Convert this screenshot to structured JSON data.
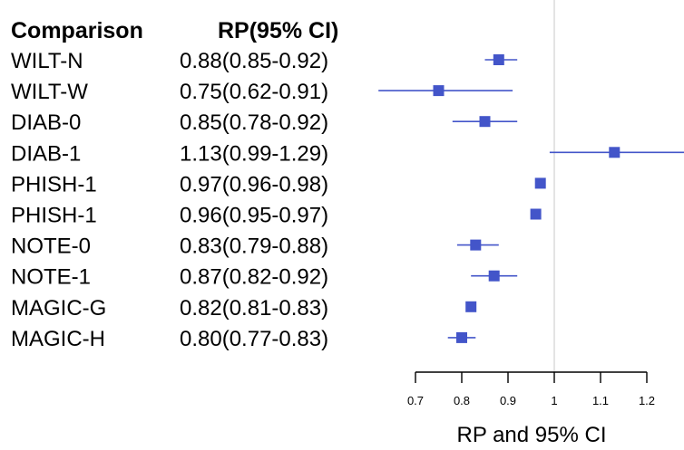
{
  "chart_data": {
    "type": "forest",
    "headers": {
      "label": "Comparison",
      "estimate": "RP(95% CI)"
    },
    "rows": [
      {
        "label": "WILT-N",
        "text": "0.88(0.85-0.92)",
        "est": 0.88,
        "lo": 0.85,
        "hi": 0.92
      },
      {
        "label": "WILT-W",
        "text": "0.75(0.62-0.91)",
        "est": 0.75,
        "lo": 0.62,
        "hi": 0.91
      },
      {
        "label": "DIAB-0",
        "text": "0.85(0.78-0.92)",
        "est": 0.85,
        "lo": 0.78,
        "hi": 0.92
      },
      {
        "label": "DIAB-1",
        "text": "1.13(0.99-1.29)",
        "est": 1.13,
        "lo": 0.99,
        "hi": 1.29
      },
      {
        "label": "PHISH-1",
        "text": "0.97(0.96-0.98)",
        "est": 0.97,
        "lo": 0.96,
        "hi": 0.98
      },
      {
        "label": "PHISH-1",
        "text": "0.96(0.95-0.97)",
        "est": 0.96,
        "lo": 0.95,
        "hi": 0.97
      },
      {
        "label": "NOTE-0",
        "text": "0.83(0.79-0.88)",
        "est": 0.83,
        "lo": 0.79,
        "hi": 0.88
      },
      {
        "label": "NOTE-1",
        "text": "0.87(0.82-0.92)",
        "est": 0.87,
        "lo": 0.82,
        "hi": 0.92
      },
      {
        "label": "MAGIC-G",
        "text": "0.82(0.81-0.83)",
        "est": 0.82,
        "lo": 0.81,
        "hi": 0.83
      },
      {
        "label": "MAGIC-H",
        "text": "0.80(0.77-0.83)",
        "est": 0.8,
        "lo": 0.77,
        "hi": 0.83
      }
    ],
    "xaxis": {
      "label": "RP and 95% CI",
      "ticks": [
        0.7,
        0.8,
        0.9,
        1.0,
        1.1,
        1.2
      ],
      "tick_labels": [
        "0.7",
        "0.8",
        "0.9",
        "1",
        "1.1",
        "1.2"
      ]
    },
    "reference_line": 1.0,
    "colors": {
      "marker": "#4355c9",
      "reference": "#c8c8c8",
      "axis": "#000000"
    }
  }
}
